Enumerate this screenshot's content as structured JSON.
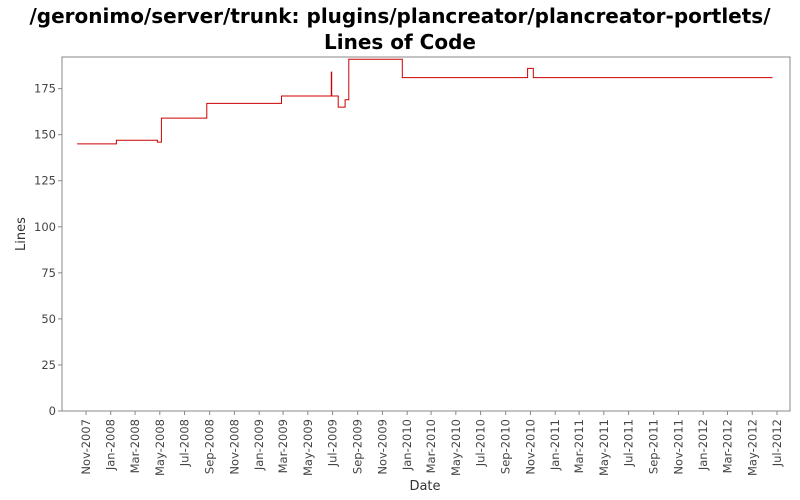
{
  "chart_data": {
    "type": "line",
    "title": "/geronimo/server/trunk: plugins/plancreator/plancreator-portlets/ Lines of Code",
    "xlabel": "Date",
    "ylabel": "Lines",
    "ylim": [
      0,
      190
    ],
    "yticks": [
      0,
      25,
      50,
      75,
      100,
      125,
      150,
      175
    ],
    "xticks": [
      "Nov-2007",
      "Jan-2008",
      "Mar-2008",
      "May-2008",
      "Jul-2008",
      "Sep-2008",
      "Nov-2008",
      "Jan-2009",
      "Mar-2009",
      "May-2009",
      "Jul-2009",
      "Sep-2009",
      "Nov-2009",
      "Jan-2010",
      "Mar-2010",
      "May-2010",
      "Jul-2010",
      "Sep-2010",
      "Nov-2010",
      "Jan-2011",
      "Mar-2011",
      "May-2011",
      "Jul-2011",
      "Sep-2011",
      "Nov-2011",
      "Jan-2012",
      "Mar-2012",
      "May-2012",
      "Jul-2012"
    ],
    "grid": false,
    "line_color": "#cc0000",
    "series": [
      {
        "step": true,
        "points": [
          [
            "2007-10-10",
            145
          ],
          [
            "2008-01-15",
            147
          ],
          [
            "2008-04-25",
            146
          ],
          [
            "2008-05-05",
            159
          ],
          [
            "2008-08-25",
            167
          ],
          [
            "2009-02-25",
            171
          ],
          [
            "2009-06-28",
            184
          ],
          [
            "2009-06-29",
            171
          ],
          [
            "2009-07-15",
            165
          ],
          [
            "2009-08-01",
            169
          ],
          [
            "2009-08-10",
            191
          ],
          [
            "2009-12-20",
            181
          ],
          [
            "2010-10-25",
            186
          ],
          [
            "2010-11-08",
            181
          ],
          [
            "2012-06-20",
            181
          ]
        ]
      }
    ]
  }
}
